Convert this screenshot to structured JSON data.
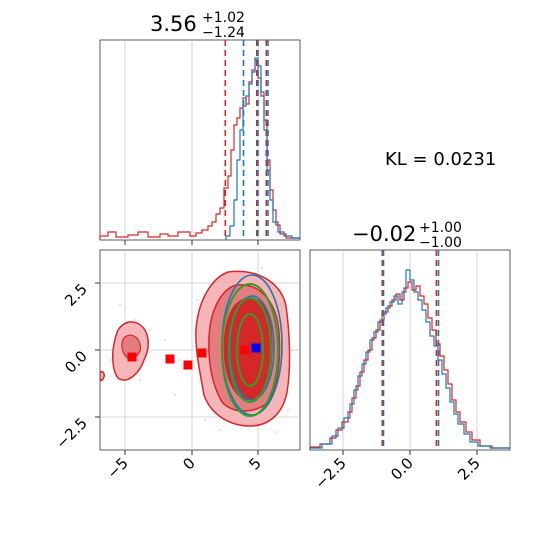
{
  "chart_data": [
    {
      "type": "histogram",
      "panel": "x-marginal",
      "title": {
        "median": "3.56",
        "plus": "+1.02",
        "minus": "−1.24"
      },
      "series": [
        {
          "name": "",
          "color": "#1f77b4",
          "x": [
            -7,
            -6,
            -5,
            -4,
            -3,
            -2,
            -1,
            0,
            1,
            2,
            3,
            3.5,
            4,
            4.5,
            5,
            5.5,
            6,
            6.5,
            7,
            7.5
          ],
          "counts": [
            0,
            0,
            0,
            0,
            0,
            0,
            0,
            0,
            0,
            0.02,
            0.08,
            0.35,
            0.6,
            0.95,
            0.7,
            0.35,
            0.12,
            0.04,
            0.01,
            0
          ]
        },
        {
          "name": "",
          "color": "#d62728",
          "x": [
            -7,
            -6,
            -5,
            -4,
            -3,
            -2,
            -1,
            0,
            1,
            2,
            2.5,
            3,
            3.5,
            4,
            4.5,
            5,
            5.5,
            6,
            6.5,
            7
          ],
          "counts": [
            0.01,
            0.01,
            0.04,
            0.03,
            0.03,
            0.03,
            0.02,
            0.03,
            0.05,
            0.1,
            0.18,
            0.3,
            0.55,
            0.65,
            0.72,
            0.45,
            0.2,
            0.08,
            0.03,
            0.01
          ]
        }
      ],
      "quantile_lines": {
        "blue": [
          3.8,
          4.7,
          5.6
        ],
        "red": [
          2.32,
          3.56,
          4.58
        ]
      },
      "xlim": [
        -7,
        8
      ]
    },
    {
      "type": "histogram",
      "panel": "y-marginal",
      "title": {
        "median": "−0.02",
        "plus": "+1.00",
        "minus": "−1.00"
      },
      "x_ticks": [
        "−2.5",
        "0.0",
        "2.5"
      ],
      "series": [
        {
          "name": "",
          "color": "#1f77b4",
          "x": [
            -3.5,
            -3,
            -2.5,
            -2,
            -1.5,
            -1,
            -0.5,
            0,
            0.5,
            1,
            1.5,
            2,
            2.5,
            3,
            3.5
          ],
          "counts": [
            0.0,
            0.02,
            0.06,
            0.15,
            0.3,
            0.5,
            0.65,
            0.75,
            0.6,
            0.45,
            0.28,
            0.14,
            0.06,
            0.02,
            0.0
          ]
        },
        {
          "name": "",
          "color": "#d62728",
          "x": [
            -3.5,
            -3,
            -2.5,
            -2,
            -1.5,
            -1,
            -0.5,
            0,
            0.5,
            1,
            1.5,
            2,
            2.5,
            3,
            3.5
          ],
          "counts": [
            0.0,
            0.02,
            0.07,
            0.16,
            0.32,
            0.48,
            0.62,
            0.72,
            0.62,
            0.48,
            0.3,
            0.15,
            0.06,
            0.02,
            0.0
          ]
        }
      ],
      "quantile_lines": {
        "blue": [
          -1.0,
          1.0
        ],
        "red": [
          -1.02,
          0.98
        ]
      },
      "xlim": [
        -3.7,
        3.7
      ]
    },
    {
      "type": "scatter",
      "panel": "joint",
      "x_ticks": [
        "−5",
        "0",
        "5"
      ],
      "y_ticks": [
        "2.5",
        "0.0",
        "−2.5"
      ],
      "xlim": [
        -7,
        8
      ],
      "ylim": [
        -3.7,
        3.7
      ],
      "red_markers": [
        {
          "x": -4.6,
          "y": -0.25
        },
        {
          "x": -1.8,
          "y": -0.35
        },
        {
          "x": -0.4,
          "y": -0.55
        },
        {
          "x": 0.7,
          "y": -0.1
        },
        {
          "x": 3.5,
          "y": 0.0
        }
      ],
      "blue_marker": {
        "x": 4.6,
        "y": 0.05
      },
      "ellipse_center": {
        "x": 4.4,
        "y": 0.0
      },
      "ellipse_radii": [
        {
          "rx": 1.0,
          "ry": 1.4
        },
        {
          "rx": 1.5,
          "ry": 2.1
        },
        {
          "rx": 1.9,
          "ry": 2.5
        }
      ]
    }
  ],
  "kl_label": "KL = 0.0231",
  "colors": {
    "blue": "#1f77b4",
    "red": "#d62728",
    "green": "#2ca02c",
    "grid": "#c8c8c8"
  }
}
